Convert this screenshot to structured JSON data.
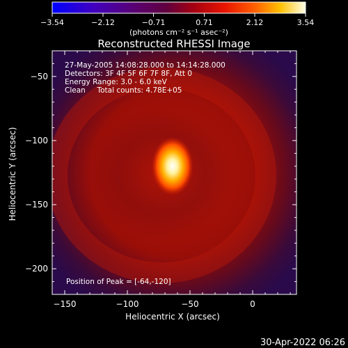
{
  "colors": {
    "background": "#000000",
    "foreground": "#ffffff",
    "colormap": [
      "#0000ff",
      "#2a00d8",
      "#5500a0",
      "#3a0a6a",
      "#2a0a40",
      "#4a0a30",
      "#8a0a14",
      "#c81400",
      "#ff4000",
      "#ff9a00",
      "#ffe000",
      "#ffffff"
    ]
  },
  "colorbar": {
    "ticks": [
      "-3.54",
      "-2.12",
      "-0.71",
      "0.71",
      "2.12",
      "3.54"
    ],
    "unit_label": "(photons cm⁻² s⁻¹ asec⁻²)"
  },
  "chart_data": {
    "type": "heatmap",
    "title": "Reconstructed RHESSI Image",
    "xlabel": "Heliocentric X (arcsec)",
    "ylabel": "Heliocentric Y (arcsec)",
    "xlim": [
      -160,
      35
    ],
    "ylim": [
      -220,
      -30
    ],
    "xticks": [
      -150,
      -100,
      -50,
      0
    ],
    "yticks": [
      -50,
      -100,
      -150,
      -200
    ],
    "xtick_labels": [
      "−150",
      "−100",
      "−50",
      "0"
    ],
    "ytick_labels": [
      "−50",
      "−100",
      "−150",
      "−200"
    ],
    "colorbar_range": [
      -3.54,
      3.54
    ],
    "peak": [
      -64,
      -120
    ],
    "annotations": [
      "27-May-2005 14:08:28.000 to 14:14:28.000",
      "Detectors: 3F 4F 5F 6F 7F 8F, Att 0",
      "Energy Range: 3.0 - 6.0 keV",
      "Clean     Total counts: 4.78E+05"
    ],
    "peak_label": "Position of Peak = [-64,-120]"
  },
  "timestamp": "30-Apr-2022 06:26"
}
